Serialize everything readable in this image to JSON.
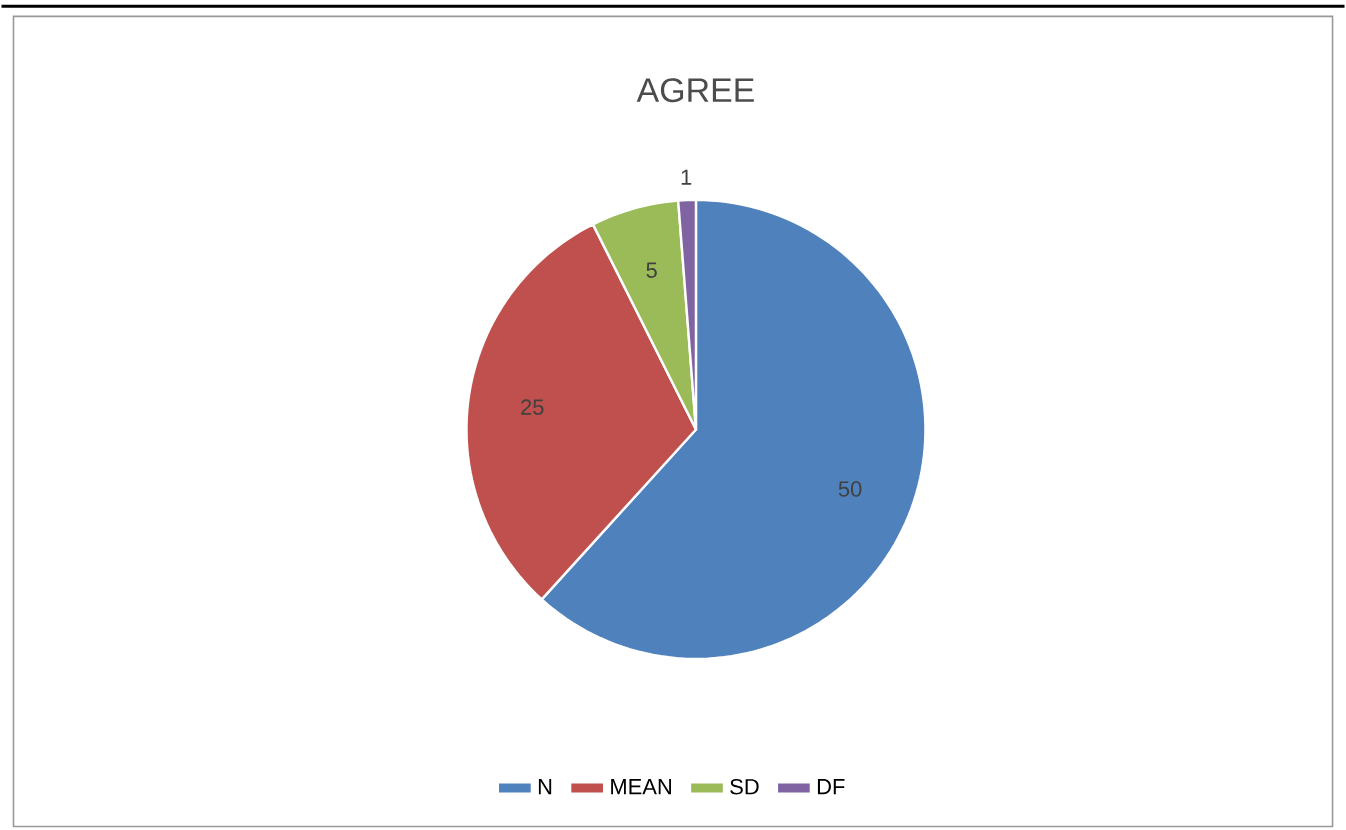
{
  "chart_data": {
    "type": "pie",
    "title": "AGREE",
    "categories": [
      "N",
      "MEAN",
      "SD",
      "DF"
    ],
    "values": [
      50,
      25,
      5,
      1
    ],
    "colors": [
      "#4f81bd",
      "#c0504d",
      "#9bbb59",
      "#8064a2"
    ],
    "data_labels": true,
    "legend": "bottom"
  }
}
